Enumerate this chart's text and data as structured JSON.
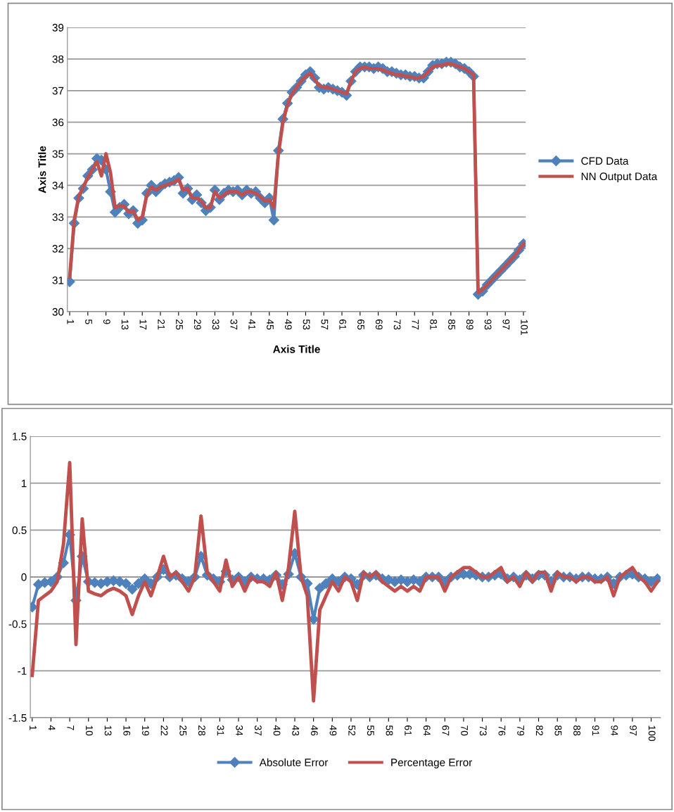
{
  "chart_data": [
    {
      "type": "line",
      "xlabel": "Axis Title",
      "ylabel": "Axis Title",
      "ylim": [
        30,
        39
      ],
      "yticks": [
        30,
        31,
        32,
        33,
        34,
        35,
        36,
        37,
        38,
        39
      ],
      "grid": "y",
      "legend": "right",
      "line_style": "solid",
      "categories": [
        "1",
        null,
        null,
        null,
        "5",
        null,
        null,
        null,
        "9",
        null,
        null,
        null,
        "13",
        null,
        null,
        null,
        "17",
        null,
        null,
        null,
        "21",
        null,
        null,
        null,
        "25",
        null,
        null,
        null,
        "29",
        null,
        null,
        null,
        "33",
        null,
        null,
        null,
        "37",
        null,
        null,
        null,
        "41",
        null,
        null,
        null,
        "45",
        null,
        null,
        null,
        "49",
        null,
        null,
        null,
        "53",
        null,
        null,
        null,
        "57",
        null,
        null,
        null,
        "61",
        null,
        null,
        null,
        "65",
        null,
        null,
        null,
        "69",
        null,
        null,
        null,
        "73",
        null,
        null,
        null,
        "77",
        null,
        null,
        null,
        "81",
        null,
        null,
        null,
        "85",
        null,
        null,
        null,
        "89",
        null,
        null,
        null,
        "93",
        null,
        null,
        null,
        "97",
        null,
        null,
        null,
        "101"
      ],
      "series": [
        {
          "name": "CFD Data",
          "color": "#4f81bd",
          "marker": "diamond",
          "values": [
            30.95,
            32.8,
            33.6,
            33.9,
            34.3,
            34.5,
            34.85,
            34.8,
            34.5,
            33.8,
            33.15,
            33.3,
            33.4,
            33.1,
            33.2,
            32.8,
            32.9,
            33.75,
            34.0,
            33.8,
            33.95,
            34.05,
            34.1,
            34.15,
            34.25,
            33.75,
            33.9,
            33.55,
            33.7,
            33.45,
            33.2,
            33.3,
            33.85,
            33.55,
            33.75,
            33.85,
            33.8,
            33.85,
            33.7,
            33.85,
            33.75,
            33.8,
            33.6,
            33.45,
            33.6,
            32.9,
            35.1,
            36.1,
            36.6,
            36.95,
            37.1,
            37.3,
            37.5,
            37.6,
            37.4,
            37.1,
            37.05,
            37.1,
            37.05,
            37.0,
            36.95,
            36.85,
            37.3,
            37.6,
            37.75,
            37.75,
            37.75,
            37.7,
            37.75,
            37.7,
            37.6,
            37.6,
            37.55,
            37.5,
            37.5,
            37.45,
            37.45,
            37.4,
            37.4,
            37.6,
            37.8,
            37.85,
            37.85,
            37.9,
            37.9,
            37.85,
            37.75,
            37.7,
            37.6,
            37.45,
            30.55,
            30.65,
            30.85,
            31.0,
            31.15,
            31.3,
            31.45,
            31.6,
            31.75,
            31.95,
            32.15
          ]
        },
        {
          "name": "NN Output Data",
          "color": "#c0504d",
          "marker": "none",
          "values": [
            31.1,
            32.9,
            33.65,
            33.95,
            34.25,
            34.5,
            34.75,
            34.3,
            35.0,
            34.4,
            33.3,
            33.35,
            33.35,
            33.15,
            33.2,
            32.9,
            33.0,
            33.7,
            33.95,
            33.85,
            33.95,
            34.0,
            34.05,
            34.1,
            34.2,
            33.85,
            33.9,
            33.6,
            33.6,
            33.5,
            33.3,
            33.3,
            33.8,
            33.6,
            33.7,
            33.8,
            33.8,
            33.8,
            33.7,
            33.8,
            33.8,
            33.75,
            33.65,
            33.5,
            33.55,
            33.3,
            35.0,
            36.0,
            36.55,
            36.9,
            37.1,
            37.3,
            37.45,
            37.55,
            37.35,
            37.15,
            37.1,
            37.1,
            37.05,
            37.0,
            36.95,
            36.9,
            37.3,
            37.6,
            37.7,
            37.75,
            37.7,
            37.7,
            37.7,
            37.65,
            37.6,
            37.55,
            37.5,
            37.5,
            37.45,
            37.45,
            37.4,
            37.4,
            37.45,
            37.6,
            37.75,
            37.8,
            37.8,
            37.85,
            37.85,
            37.8,
            37.75,
            37.7,
            37.6,
            37.5,
            30.6,
            30.7,
            30.85,
            31.0,
            31.15,
            31.3,
            31.45,
            31.6,
            31.75,
            31.95,
            32.15
          ]
        }
      ]
    },
    {
      "type": "line",
      "ylim": [
        -1.5,
        1.5
      ],
      "yticks": [
        -1.5,
        -1,
        -0.5,
        0,
        0.5,
        1,
        1.5
      ],
      "grid": "y",
      "legend": "bottom",
      "line_style": "solid",
      "categories": [
        "1",
        null,
        null,
        "4",
        null,
        null,
        "7",
        null,
        null,
        "10",
        null,
        null,
        "13",
        null,
        null,
        "16",
        null,
        null,
        "19",
        null,
        null,
        "22",
        null,
        null,
        "25",
        null,
        null,
        "28",
        null,
        null,
        "31",
        null,
        null,
        "34",
        null,
        null,
        "37",
        null,
        null,
        "40",
        null,
        null,
        "43",
        null,
        null,
        "46",
        null,
        null,
        "49",
        null,
        null,
        "52",
        null,
        null,
        "55",
        null,
        null,
        "58",
        null,
        null,
        "61",
        null,
        null,
        "64",
        null,
        null,
        "67",
        null,
        null,
        "70",
        null,
        null,
        "73",
        null,
        null,
        "76",
        null,
        null,
        "79",
        null,
        null,
        "82",
        null,
        null,
        "85",
        null,
        null,
        "88",
        null,
        null,
        "91",
        null,
        null,
        "94",
        null,
        null,
        "97",
        null,
        null,
        "100",
        null
      ],
      "series": [
        {
          "name": "Absolute Error",
          "color": "#4f81bd",
          "marker": "diamond",
          "values": [
            -0.32,
            -0.08,
            -0.06,
            -0.05,
            0.0,
            0.15,
            0.45,
            -0.25,
            0.22,
            -0.05,
            -0.06,
            -0.07,
            -0.05,
            -0.04,
            -0.05,
            -0.07,
            -0.13,
            -0.07,
            -0.02,
            -0.07,
            0.0,
            0.08,
            0.0,
            0.02,
            -0.02,
            -0.05,
            0.0,
            0.22,
            0.02,
            -0.02,
            -0.05,
            0.06,
            -0.03,
            0.0,
            -0.05,
            0.0,
            -0.02,
            -0.02,
            -0.03,
            0.02,
            -0.08,
            0.03,
            0.25,
            0.0,
            -0.07,
            -0.45,
            -0.12,
            -0.07,
            -0.02,
            -0.05,
            0.0,
            -0.02,
            -0.08,
            0.02,
            0.0,
            0.02,
            -0.02,
            -0.03,
            -0.05,
            -0.03,
            -0.05,
            -0.03,
            -0.05,
            0.0,
            0.0,
            0.0,
            -0.05,
            0.0,
            0.02,
            0.03,
            0.03,
            0.02,
            0.0,
            0.0,
            0.02,
            0.03,
            -0.02,
            0.0,
            -0.03,
            0.02,
            -0.02,
            0.02,
            0.02,
            -0.05,
            0.02,
            0.0,
            0.0,
            -0.02,
            0.0,
            0.0,
            -0.02,
            -0.02,
            0.0,
            -0.07,
            0.0,
            0.02,
            0.03,
            0.0,
            -0.02,
            -0.05,
            -0.02
          ]
        },
        {
          "name": "Percentage Error",
          "color": "#c0504d",
          "marker": "none",
          "values": [
            -1.05,
            -0.25,
            -0.2,
            -0.15,
            -0.05,
            0.35,
            1.22,
            -0.72,
            0.62,
            -0.15,
            -0.18,
            -0.2,
            -0.15,
            -0.12,
            -0.15,
            -0.2,
            -0.4,
            -0.2,
            -0.05,
            -0.2,
            0.0,
            0.22,
            0.0,
            0.05,
            -0.05,
            -0.15,
            0.0,
            0.65,
            0.05,
            -0.05,
            -0.15,
            0.18,
            -0.1,
            0.0,
            -0.15,
            0.0,
            -0.05,
            -0.05,
            -0.1,
            0.05,
            -0.25,
            0.1,
            0.7,
            0.0,
            -0.2,
            -1.32,
            -0.35,
            -0.2,
            -0.05,
            -0.15,
            0.0,
            -0.05,
            -0.25,
            0.05,
            0.0,
            0.05,
            -0.05,
            -0.1,
            -0.15,
            -0.1,
            -0.15,
            -0.1,
            -0.15,
            0.0,
            0.0,
            0.0,
            -0.15,
            0.0,
            0.05,
            0.1,
            0.1,
            0.05,
            0.0,
            0.0,
            0.05,
            0.1,
            -0.05,
            0.0,
            -0.1,
            0.05,
            -0.05,
            0.05,
            0.05,
            -0.15,
            0.05,
            0.0,
            0.0,
            -0.05,
            0.0,
            0.0,
            -0.05,
            -0.05,
            0.0,
            -0.2,
            0.0,
            0.05,
            0.1,
            0.0,
            -0.05,
            -0.15,
            -0.05
          ]
        }
      ]
    }
  ]
}
